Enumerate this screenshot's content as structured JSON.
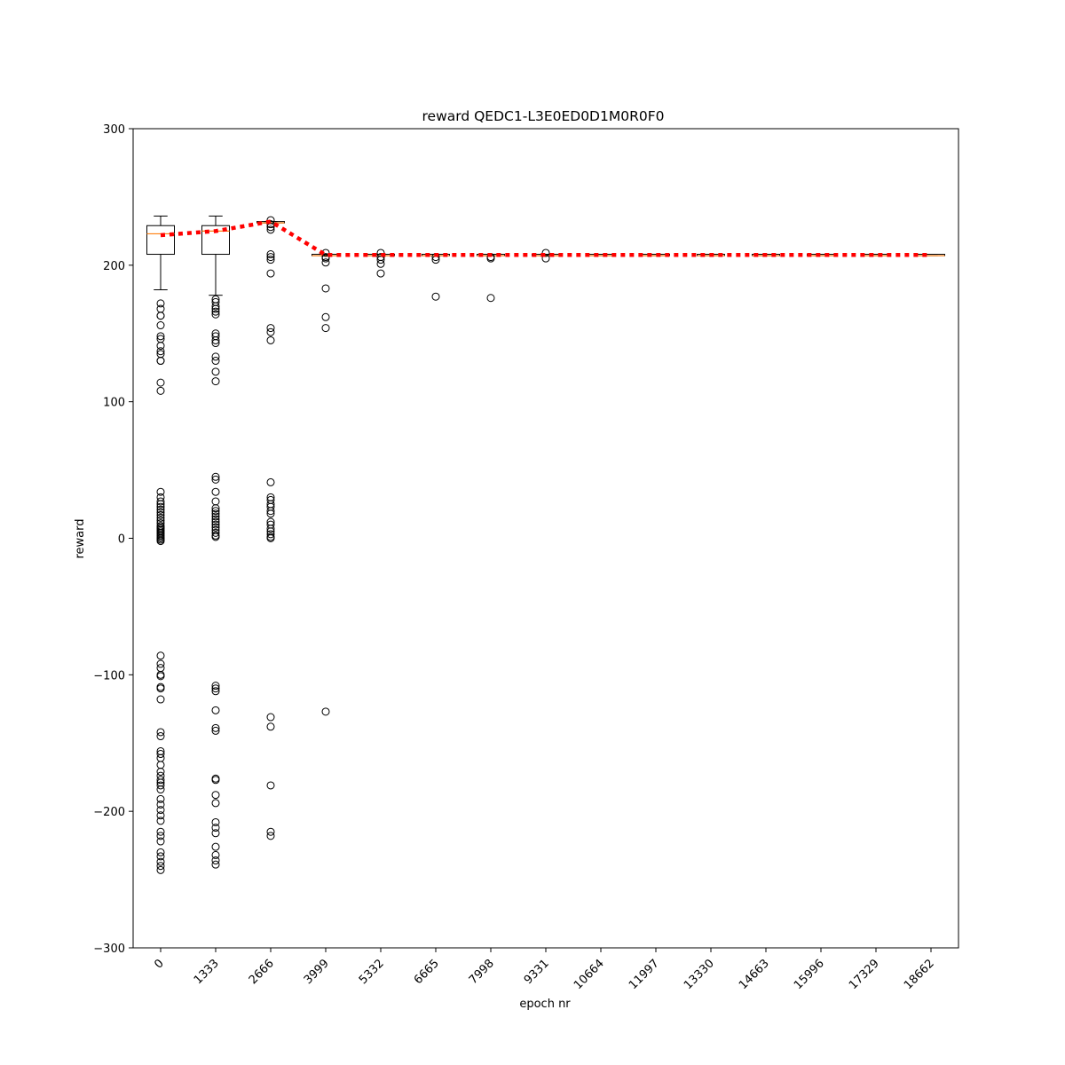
{
  "chart_data": {
    "type": "box",
    "title": "reward QEDC1-L3E0ED0D1M0R0F0",
    "xlabel": "epoch nr",
    "ylabel": "reward",
    "categories": [
      "0",
      "1333",
      "2666",
      "3999",
      "5332",
      "6665",
      "7998",
      "9331",
      "10664",
      "11997",
      "13330",
      "14663",
      "15996",
      "17329",
      "18662"
    ],
    "ylim": [
      -300,
      300
    ],
    "yticks": [
      {
        "value": -300,
        "label": "−300"
      },
      {
        "value": -200,
        "label": "−200"
      },
      {
        "value": -100,
        "label": "−100"
      },
      0,
      100,
      200,
      300
    ],
    "box_color": "#000000",
    "median_color": "#ff7f0e",
    "mean_color": "#ff0000",
    "boxes": [
      {
        "whislo": 182,
        "q1": 208,
        "med": 223,
        "q3": 229,
        "whishi": 236,
        "fliers": [
          172,
          168,
          163,
          163,
          156,
          148,
          146,
          141,
          137,
          135,
          130,
          130,
          114,
          108,
          34,
          30,
          27,
          25,
          23,
          21,
          19,
          17,
          15,
          13,
          11,
          9,
          8,
          7,
          6,
          5,
          4,
          3,
          2,
          1,
          0,
          -1,
          -2,
          -86,
          -92,
          -95,
          -100,
          -101,
          -109,
          -110,
          -118,
          -142,
          -145,
          -156,
          -158,
          -161,
          -166,
          -171,
          -174,
          -177,
          -179,
          -181,
          -184,
          -191,
          -195,
          -199,
          -203,
          -207,
          -215,
          -218,
          -222,
          -230,
          -233,
          -237,
          -240,
          -243
        ]
      },
      {
        "whislo": 178,
        "q1": 208,
        "med": 225,
        "q3": 229,
        "whishi": 236,
        "fliers": [
          175,
          173,
          170,
          168,
          166,
          164,
          150,
          148,
          145,
          143,
          133,
          130,
          122,
          115,
          45,
          43,
          34,
          27,
          22,
          20,
          18,
          16,
          14,
          12,
          10,
          8,
          6,
          4,
          2,
          1,
          -108,
          -110,
          -112,
          -126,
          -139,
          -141,
          -176,
          -177,
          -188,
          -194,
          -208,
          -212,
          -216,
          -226,
          -232,
          -236,
          -239
        ]
      },
      {
        "whislo": 231,
        "q1": 231,
        "med": 231,
        "q3": 232,
        "whishi": 232,
        "fliers": [
          233,
          230,
          228,
          226,
          208,
          206,
          204,
          194,
          154,
          151,
          145,
          41,
          30,
          28,
          25,
          23,
          20,
          18,
          12,
          10,
          7,
          5,
          3,
          1,
          0,
          -131,
          -138,
          -181,
          -215,
          -218
        ]
      },
      {
        "whislo": 207,
        "q1": 207,
        "med": 207,
        "q3": 208,
        "whishi": 208,
        "fliers": [
          209,
          206,
          205,
          202,
          183,
          162,
          154,
          -127
        ]
      },
      {
        "whislo": 207,
        "q1": 207,
        "med": 207,
        "q3": 208,
        "whishi": 208,
        "fliers": [
          209,
          206,
          204,
          201,
          194
        ]
      },
      {
        "whislo": 207,
        "q1": 207,
        "med": 207,
        "q3": 208,
        "whishi": 208,
        "fliers": [
          206,
          204,
          177
        ]
      },
      {
        "whislo": 207,
        "q1": 207,
        "med": 207,
        "q3": 208,
        "whishi": 208,
        "fliers": [
          206,
          205,
          176
        ]
      },
      {
        "whislo": 207,
        "q1": 207,
        "med": 207,
        "q3": 208,
        "whishi": 208,
        "fliers": [
          209,
          205
        ]
      },
      {
        "whislo": 207,
        "q1": 207,
        "med": 207,
        "q3": 208,
        "whishi": 208,
        "fliers": []
      },
      {
        "whislo": 207,
        "q1": 207,
        "med": 207,
        "q3": 208,
        "whishi": 208,
        "fliers": []
      },
      {
        "whislo": 207,
        "q1": 207,
        "med": 207,
        "q3": 208,
        "whishi": 208,
        "fliers": []
      },
      {
        "whislo": 207,
        "q1": 207,
        "med": 207,
        "q3": 208,
        "whishi": 208,
        "fliers": []
      },
      {
        "whislo": 207,
        "q1": 207,
        "med": 207,
        "q3": 208,
        "whishi": 208,
        "fliers": []
      },
      {
        "whislo": 207,
        "q1": 207,
        "med": 207,
        "q3": 208,
        "whishi": 208,
        "fliers": []
      },
      {
        "whislo": 207,
        "q1": 207,
        "med": 207,
        "q3": 208,
        "whishi": 208,
        "fliers": []
      }
    ],
    "means": [
      222,
      225,
      232,
      207.5,
      207.5,
      207.5,
      207.5,
      207.5,
      207.5,
      207.5,
      207.5,
      207.5,
      207.5,
      207.5,
      207.5
    ]
  }
}
